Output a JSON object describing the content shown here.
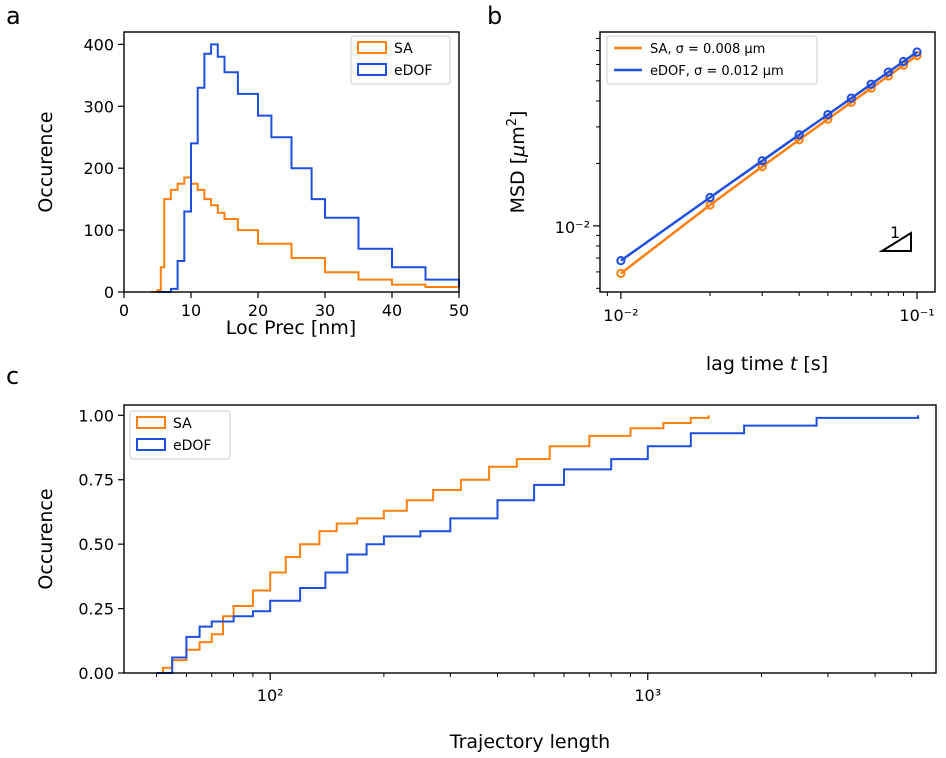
{
  "colors": {
    "SA": "#ff7f0e",
    "eDOF": "#1f4fe0"
  },
  "chart_data": [
    {
      "panel": "a",
      "type": "line",
      "subtype": "step-histogram",
      "xlabel": "Loc Prec [nm]",
      "ylabel": "Occurence",
      "xlim": [
        0,
        50
      ],
      "ylim": [
        0,
        420
      ],
      "xticks": [
        0,
        10,
        20,
        30,
        40,
        50
      ],
      "yticks": [
        0,
        100,
        200,
        300,
        400
      ],
      "legend": "top-right",
      "series": [
        {
          "name": "SA",
          "color": "#ff7f0e",
          "x": [
            4,
            5,
            5.5,
            6,
            7,
            8,
            9,
            10,
            11,
            12,
            13,
            14,
            15,
            17,
            20,
            25,
            30,
            35,
            40,
            45,
            50
          ],
          "values": [
            0,
            3,
            40,
            150,
            165,
            175,
            185,
            175,
            165,
            150,
            140,
            128,
            118,
            100,
            78,
            55,
            32,
            20,
            12,
            8,
            5
          ]
        },
        {
          "name": "eDOF",
          "color": "#1f4fe0",
          "x": [
            5,
            7,
            8,
            9,
            10,
            11,
            12,
            13,
            14,
            15,
            17,
            20,
            22,
            25,
            28,
            30,
            35,
            40,
            45,
            50
          ],
          "values": [
            0,
            5,
            50,
            130,
            240,
            330,
            385,
            400,
            380,
            355,
            320,
            285,
            250,
            200,
            150,
            120,
            70,
            40,
            20,
            8
          ]
        }
      ]
    },
    {
      "panel": "b",
      "type": "line",
      "xlabel": "lag time t [s]",
      "ylabel": "MSD [μm²]",
      "xscale": "log",
      "yscale": "log",
      "xlim": [
        0.0085,
        0.115
      ],
      "ylim": [
        0.0048,
        0.086
      ],
      "xtick_labels": [
        "10⁻²",
        "10⁻¹"
      ],
      "ytick_labels": [
        "10⁻²"
      ],
      "legend": "top-left",
      "slope_annotation": "1",
      "series": [
        {
          "name": "SA, σ = 0.008 μm",
          "color": "#ff7f0e",
          "x": [
            0.01,
            0.02,
            0.03,
            0.04,
            0.05,
            0.06,
            0.07,
            0.08,
            0.09,
            0.1
          ],
          "values": [
            0.0059,
            0.0126,
            0.0193,
            0.026,
            0.0327,
            0.0394,
            0.0461,
            0.0528,
            0.0595,
            0.0662
          ]
        },
        {
          "name": "eDOF, σ = 0.012 μm",
          "color": "#1f4fe0",
          "x": [
            0.01,
            0.02,
            0.03,
            0.04,
            0.05,
            0.06,
            0.07,
            0.08,
            0.09,
            0.1
          ],
          "values": [
            0.0068,
            0.0137,
            0.0206,
            0.0275,
            0.0344,
            0.0413,
            0.0482,
            0.0551,
            0.062,
            0.0689
          ]
        }
      ]
    },
    {
      "panel": "c",
      "type": "line",
      "subtype": "step-cdf",
      "xlabel": "Trajectory length",
      "ylabel": "Occurence",
      "xscale": "log",
      "xlim": [
        41,
        5800
      ],
      "ylim": [
        0,
        1.04
      ],
      "xtick_labels": [
        "10²",
        "10³"
      ],
      "yticks": [
        0.0,
        0.25,
        0.5,
        0.75,
        1.0
      ],
      "ytick_labels": [
        "0.00",
        "0.25",
        "0.50",
        "0.75",
        "1.00"
      ],
      "legend": "top-left",
      "series": [
        {
          "name": "SA",
          "color": "#ff7f0e",
          "x": [
            50,
            52,
            55,
            60,
            65,
            70,
            75,
            80,
            90,
            100,
            110,
            120,
            135,
            150,
            170,
            200,
            230,
            270,
            320,
            380,
            450,
            550,
            700,
            900,
            1100,
            1300,
            1450
          ],
          "values": [
            0,
            0.02,
            0.05,
            0.09,
            0.12,
            0.15,
            0.22,
            0.26,
            0.32,
            0.39,
            0.45,
            0.5,
            0.55,
            0.58,
            0.6,
            0.63,
            0.67,
            0.71,
            0.75,
            0.8,
            0.83,
            0.88,
            0.92,
            0.95,
            0.97,
            0.99,
            1.0
          ]
        },
        {
          "name": "eDOF",
          "color": "#1f4fe0",
          "x": [
            50,
            55,
            60,
            65,
            70,
            80,
            90,
            100,
            120,
            140,
            160,
            180,
            200,
            250,
            300,
            400,
            500,
            600,
            800,
            1000,
            1300,
            1800,
            2800,
            5200
          ],
          "values": [
            0,
            0.06,
            0.14,
            0.18,
            0.2,
            0.22,
            0.24,
            0.28,
            0.33,
            0.39,
            0.46,
            0.5,
            0.53,
            0.55,
            0.6,
            0.67,
            0.73,
            0.79,
            0.83,
            0.88,
            0.93,
            0.96,
            0.99,
            1.0
          ]
        }
      ]
    }
  ]
}
